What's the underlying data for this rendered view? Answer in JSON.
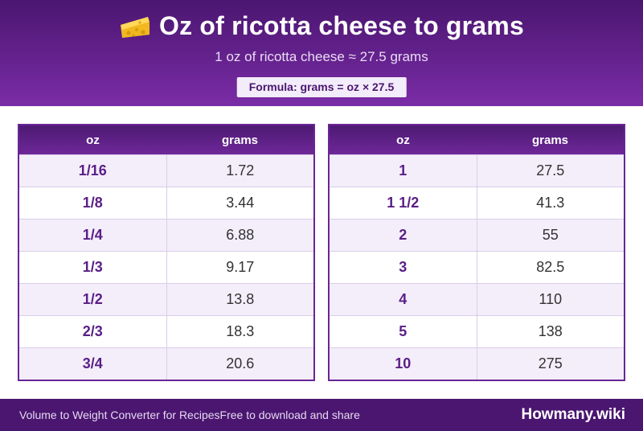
{
  "header": {
    "icon": "cheese-icon",
    "title": "Oz of ricotta cheese to grams",
    "subtitle": "1 oz of ricotta cheese ≈ 27.5 grams",
    "formula": "Formula: grams = oz × 27.5"
  },
  "tables": [
    {
      "col_oz": "oz",
      "col_grams": "grams",
      "rows": [
        {
          "oz": "1/16",
          "grams": "1.72"
        },
        {
          "oz": "1/8",
          "grams": "3.44"
        },
        {
          "oz": "1/4",
          "grams": "6.88"
        },
        {
          "oz": "1/3",
          "grams": "9.17"
        },
        {
          "oz": "1/2",
          "grams": "13.8"
        },
        {
          "oz": "2/3",
          "grams": "18.3"
        },
        {
          "oz": "3/4",
          "grams": "20.6"
        }
      ]
    },
    {
      "col_oz": "oz",
      "col_grams": "grams",
      "rows": [
        {
          "oz": "1",
          "grams": "27.5"
        },
        {
          "oz": "1 1/2",
          "grams": "41.3"
        },
        {
          "oz": "2",
          "grams": "55"
        },
        {
          "oz": "3",
          "grams": "82.5"
        },
        {
          "oz": "4",
          "grams": "110"
        },
        {
          "oz": "5",
          "grams": "138"
        },
        {
          "oz": "10",
          "grams": "275"
        }
      ]
    }
  ],
  "footer": {
    "left_text": "Volume to Weight Converter for Recipes",
    "middle_text": "Free to download and share",
    "brand": "Howmany.wiki"
  },
  "colors": {
    "header_dark": "#4a1670",
    "header_light": "#7b2ca6",
    "accent_text": "#5a1e86",
    "stripe": "#f4eefb"
  }
}
